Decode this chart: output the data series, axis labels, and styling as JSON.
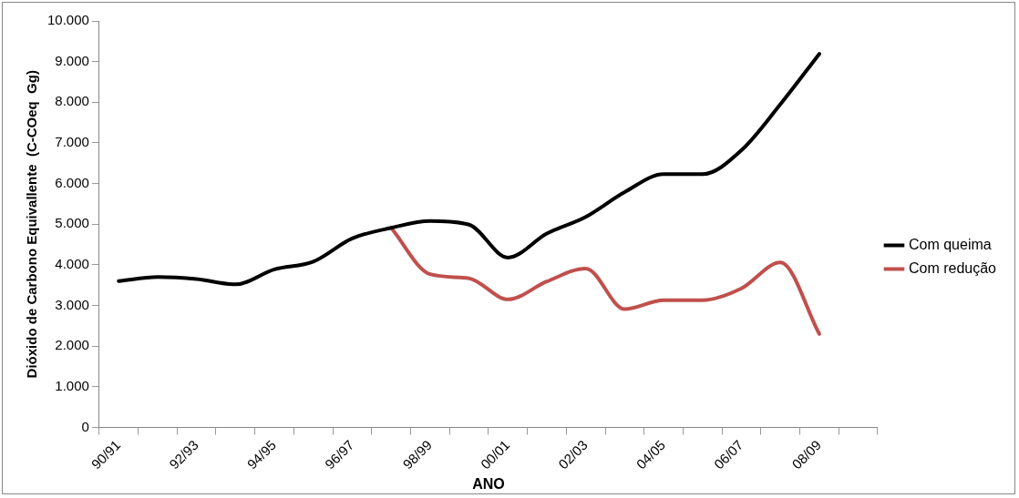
{
  "chart_data": {
    "type": "line",
    "xlabel": "ANO",
    "ylabel": "Dióxido de Carbono Equivallente  (C-COeq  Gg)",
    "categories": [
      "90/91",
      null,
      "92/93",
      null,
      "94/95",
      null,
      "96/97",
      null,
      "98/99",
      null,
      "00/01",
      null,
      "02/03",
      null,
      "04/05",
      null,
      "06/07",
      null,
      "08/09",
      null
    ],
    "series": [
      {
        "name": "Com queima",
        "color": "#000000",
        "values": [
          3600,
          3700,
          3650,
          3520,
          3890,
          4080,
          4650,
          4910,
          5080,
          4990,
          4180,
          4770,
          5180,
          5790,
          6230,
          6230,
          6820,
          7950,
          9190,
          null
        ]
      },
      {
        "name": "Com redução",
        "color": "#c0504d",
        "values": [
          null,
          null,
          null,
          null,
          null,
          null,
          null,
          4910,
          3770,
          3670,
          3150,
          3590,
          3910,
          2910,
          3130,
          3130,
          3420,
          4060,
          2300,
          null
        ]
      }
    ],
    "ylim": [
      0,
      10000
    ],
    "yticks": [
      {
        "value": 0,
        "label": "0"
      },
      {
        "value": 1000,
        "label": "1.000"
      },
      {
        "value": 2000,
        "label": "2.000"
      },
      {
        "value": 3000,
        "label": "3.000"
      },
      {
        "value": 4000,
        "label": "4.000"
      },
      {
        "value": 5000,
        "label": "5.000"
      },
      {
        "value": 6000,
        "label": "6.000"
      },
      {
        "value": 7000,
        "label": "7.000"
      },
      {
        "value": 8000,
        "label": "8.000"
      },
      {
        "value": 9000,
        "label": "9.000"
      },
      {
        "value": 10000,
        "label": "10.000"
      }
    ],
    "grid": false,
    "legend": "right",
    "marker": "none",
    "line_style": "solid"
  }
}
